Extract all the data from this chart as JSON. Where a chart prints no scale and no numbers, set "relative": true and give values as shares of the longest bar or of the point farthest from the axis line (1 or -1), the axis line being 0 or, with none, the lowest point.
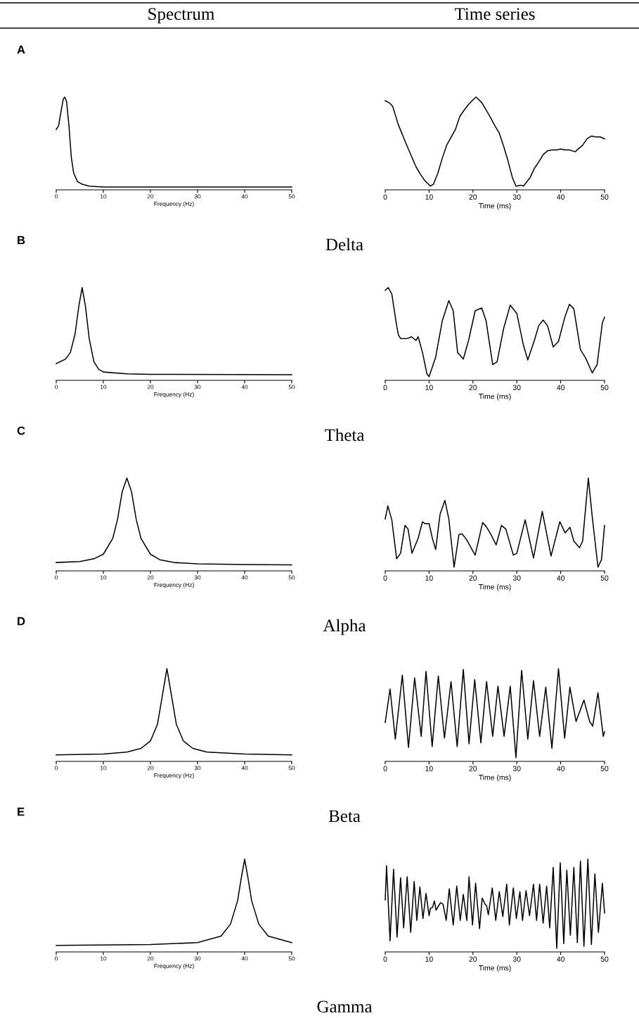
{
  "chart_data": [
    {
      "type": "line",
      "title": "Spectrum",
      "annotations": [
        "A"
      ],
      "xlabel": "Frequency (Hz)",
      "xlim": [
        0,
        50
      ],
      "xticks": [
        0,
        10,
        20,
        30,
        40,
        50
      ],
      "relative": true,
      "x": [
        0,
        0.5,
        1,
        1.5,
        1.8,
        2.2,
        2.7,
        3.2,
        3.7,
        4.5,
        5.5,
        7,
        10,
        50
      ],
      "series": [
        {
          "color": "#000000",
          "values": [
            0.65,
            0.69,
            0.84,
            0.98,
            1,
            0.95,
            0.69,
            0.35,
            0.18,
            0.09,
            0.06,
            0.04,
            0.03,
            0.03
          ]
        }
      ]
    },
    {
      "type": "line",
      "title": "Time series",
      "annotations": [
        "Delta"
      ],
      "xlabel": "Time (ms)",
      "xlim": [
        0,
        50
      ],
      "xticks": [
        0,
        10,
        20,
        30,
        40,
        50
      ],
      "relative": true,
      "x": [
        0,
        1,
        1.7,
        3,
        5,
        7,
        8,
        9,
        10.3,
        11,
        12,
        13,
        14,
        16,
        17,
        18,
        19,
        20,
        20.7,
        22,
        23,
        24,
        25,
        26,
        27,
        28,
        29,
        29.8,
        31,
        31.5,
        33,
        34,
        35,
        36,
        37,
        38,
        39,
        40,
        41,
        42,
        43.3,
        44,
        45,
        46,
        47,
        48,
        49,
        50
      ],
      "series": [
        {
          "color": "#000000",
          "values": [
            0.96,
            0.935,
            0.9,
            0.7,
            0.47,
            0.25,
            0.17,
            0.1,
            0.04,
            0.06,
            0.18,
            0.34,
            0.48,
            0.65,
            0.79,
            0.86,
            0.92,
            0.97,
            1,
            0.94,
            0.86,
            0.78,
            0.69,
            0.61,
            0.47,
            0.31,
            0.13,
            0.04,
            0.05,
            0.04,
            0.13,
            0.23,
            0.3,
            0.38,
            0.42,
            0.43,
            0.43,
            0.44,
            0.43,
            0.43,
            0.41,
            0.44,
            0.48,
            0.55,
            0.58,
            0.57,
            0.57,
            0.55
          ]
        }
      ]
    },
    {
      "type": "line",
      "annotations": [
        "B"
      ],
      "xlabel": "Frequency (Hz)",
      "xlim": [
        0,
        50
      ],
      "xticks": [
        0,
        10,
        20,
        30,
        40,
        50
      ],
      "relative": true,
      "x": [
        0,
        2,
        3,
        4,
        4.8,
        5.5,
        6.2,
        7,
        8,
        9,
        10,
        15,
        20,
        50
      ],
      "series": [
        {
          "color": "#000000",
          "values": [
            0.18,
            0.23,
            0.3,
            0.5,
            0.8,
            1,
            0.8,
            0.45,
            0.2,
            0.12,
            0.09,
            0.07,
            0.065,
            0.06
          ]
        }
      ]
    },
    {
      "type": "line",
      "annotations": [
        "Theta"
      ],
      "xlabel": "Time (ms)",
      "xlim": [
        0,
        50
      ],
      "xticks": [
        0,
        10,
        20,
        30,
        40,
        50
      ],
      "relative": true,
      "x": [
        0,
        0.7,
        1.5,
        2.5,
        3,
        3.5,
        5,
        6,
        7,
        7.5,
        8.5,
        9.5,
        10,
        11.5,
        13,
        14.5,
        15.5,
        16.5,
        17.8,
        19,
        20.5,
        22,
        23,
        24.5,
        25.5,
        27,
        28.5,
        30,
        31.5,
        32.5,
        34,
        35,
        36,
        37,
        38.3,
        39.5,
        41,
        42,
        43,
        44.5,
        45.7,
        47.2,
        48.3,
        49.5,
        50
      ],
      "series": [
        {
          "color": "#000000",
          "values": [
            0.97,
            1,
            0.93,
            0.62,
            0.49,
            0.45,
            0.45,
            0.47,
            0.43,
            0.47,
            0.3,
            0.07,
            0.04,
            0.25,
            0.64,
            0.86,
            0.75,
            0.3,
            0.23,
            0.43,
            0.75,
            0.78,
            0.64,
            0.17,
            0.2,
            0.56,
            0.81,
            0.72,
            0.38,
            0.22,
            0.43,
            0.59,
            0.65,
            0.59,
            0.36,
            0.42,
            0.69,
            0.82,
            0.77,
            0.33,
            0.24,
            0.08,
            0.17,
            0.62,
            0.68
          ]
        }
      ]
    },
    {
      "type": "line",
      "annotations": [
        "C"
      ],
      "xlabel": "Frequency (Hz)",
      "xlim": [
        0,
        50
      ],
      "xticks": [
        0,
        10,
        20,
        30,
        40,
        50
      ],
      "relative": true,
      "x": [
        0,
        5,
        8,
        10,
        12,
        13,
        14,
        15,
        16,
        17,
        18,
        20,
        22,
        25,
        30,
        40,
        50
      ],
      "series": [
        {
          "color": "#000000",
          "values": [
            0.09,
            0.1,
            0.13,
            0.18,
            0.35,
            0.55,
            0.85,
            1,
            0.85,
            0.55,
            0.35,
            0.18,
            0.12,
            0.09,
            0.075,
            0.068,
            0.064
          ]
        }
      ]
    },
    {
      "type": "line",
      "annotations": [
        "Alpha"
      ],
      "xlabel": "Time (ms)",
      "xlim": [
        0,
        50
      ],
      "xticks": [
        0,
        10,
        20,
        30,
        40,
        50
      ],
      "relative": true,
      "x": [
        0,
        0.6,
        1.5,
        2.6,
        3.5,
        4.5,
        5.2,
        6.1,
        7.5,
        8.5,
        9,
        10,
        10.8,
        11.5,
        12.5,
        13.6,
        14.5,
        15.7,
        16.8,
        17.5,
        18.5,
        20.5,
        22.2,
        23,
        24,
        25.3,
        26.5,
        27.5,
        29.2,
        30,
        31.9,
        33.8,
        35.8,
        37.8,
        39.8,
        41,
        42.1,
        43,
        44.3,
        45,
        46.3,
        47.2,
        48.5,
        49.3,
        50
      ],
      "series": [
        {
          "color": "#000000",
          "values": [
            0.56,
            0.7,
            0.55,
            0.13,
            0.19,
            0.49,
            0.45,
            0.19,
            0.35,
            0.53,
            0.51,
            0.51,
            0.34,
            0.23,
            0.61,
            0.76,
            0.56,
            0.04,
            0.39,
            0.4,
            0.34,
            0.17,
            0.52,
            0.48,
            0.4,
            0.28,
            0.49,
            0.45,
            0.17,
            0.19,
            0.55,
            0.14,
            0.64,
            0.16,
            0.53,
            0.41,
            0.47,
            0.32,
            0.25,
            0.32,
            1,
            0.58,
            0.04,
            0.12,
            0.49
          ]
        }
      ]
    },
    {
      "type": "line",
      "annotations": [
        "D"
      ],
      "xlabel": "Frequency (Hz)",
      "xlim": [
        0,
        50
      ],
      "xticks": [
        0,
        10,
        20,
        30,
        40,
        50
      ],
      "relative": true,
      "x": [
        0,
        10,
        15,
        18,
        20,
        21.5,
        22.5,
        23.5,
        24.5,
        25.5,
        27,
        29,
        32,
        40,
        50
      ],
      "series": [
        {
          "color": "#000000",
          "values": [
            0.07,
            0.08,
            0.1,
            0.14,
            0.22,
            0.4,
            0.7,
            1,
            0.7,
            0.4,
            0.22,
            0.14,
            0.1,
            0.08,
            0.07
          ]
        }
      ]
    },
    {
      "type": "line",
      "annotations": [
        "Beta"
      ],
      "xlabel": "Time (ms)",
      "xlim": [
        0,
        50
      ],
      "xticks": [
        0,
        10,
        20,
        30,
        40,
        50
      ],
      "relative": true,
      "x": [
        0,
        1.1,
        2.3,
        3.9,
        5.3,
        6.7,
        8.2,
        9.3,
        10.7,
        12.1,
        13.5,
        15,
        16.4,
        17.8,
        19.1,
        20.4,
        21.8,
        23.1,
        24.5,
        25.7,
        27.1,
        28.5,
        29.8,
        31.1,
        32.5,
        33.8,
        35.2,
        36.6,
        38,
        39.5,
        40.9,
        42.1,
        43.5,
        45.3,
        46.6,
        47.3,
        48.5,
        49.7,
        50
      ],
      "series": [
        {
          "color": "#000000",
          "values": [
            0.42,
            0.78,
            0.24,
            0.93,
            0.15,
            0.9,
            0.27,
            0.97,
            0.16,
            0.92,
            0.25,
            0.86,
            0.16,
            0.99,
            0.19,
            0.88,
            0.2,
            0.86,
            0.27,
            0.81,
            0.27,
            0.81,
            0.04,
            0.98,
            0.24,
            0.87,
            0.27,
            0.8,
            0.14,
            1,
            0.25,
            0.8,
            0.43,
            0.66,
            0.43,
            0.38,
            0.74,
            0.27,
            0.32
          ]
        }
      ]
    },
    {
      "type": "line",
      "annotations": [
        "E"
      ],
      "xlabel": "Frequency (Hz)",
      "xlim": [
        0,
        50
      ],
      "xticks": [
        0,
        10,
        20,
        30,
        40,
        50
      ],
      "relative": true,
      "x": [
        0,
        20,
        30,
        35,
        37,
        38.5,
        39.3,
        40,
        40.7,
        41.5,
        43,
        45,
        50
      ],
      "series": [
        {
          "color": "#000000",
          "values": [
            0.07,
            0.08,
            0.1,
            0.17,
            0.3,
            0.55,
            0.8,
            1,
            0.8,
            0.55,
            0.3,
            0.17,
            0.1
          ]
        }
      ]
    },
    {
      "type": "line",
      "annotations": [
        "Gamma"
      ],
      "xlabel": "Time (ms)",
      "xlim": [
        0,
        50
      ],
      "xticks": [
        0,
        10,
        20,
        30,
        40,
        50
      ],
      "relative": true,
      "x": [
        0,
        0.3,
        1.1,
        1.9,
        2.7,
        3.5,
        4.2,
        5.0,
        5.8,
        6.6,
        7.2,
        7.9,
        8.6,
        9.3,
        10.0,
        10.3,
        10.8,
        11.2,
        11.6,
        12.2,
        12.6,
        13.0,
        13.2,
        13.9,
        14.6,
        15.5,
        16.3,
        17.1,
        17.8,
        18.6,
        19.1,
        19.9,
        20.6,
        21.5,
        22.1,
        22.8,
        23.1,
        23.5,
        24.4,
        25.2,
        26.0,
        26.8,
        27.7,
        28.3,
        29.2,
        29.9,
        30.7,
        31.3,
        32.1,
        32.9,
        33.8,
        34.5,
        35.2,
        36.0,
        36.8,
        37.5,
        38.3,
        39.1,
        39.9,
        40.7,
        41.4,
        42.2,
        43.0,
        43.8,
        44.5,
        45.3,
        46.2,
        47.0,
        47.8,
        48.6,
        49.5,
        50
      ],
      "series": [
        {
          "color": "#000000",
          "values": [
            0.56,
            0.93,
            0.12,
            0.89,
            0.16,
            0.8,
            0.26,
            0.81,
            0.21,
            0.76,
            0.34,
            0.7,
            0.36,
            0.63,
            0.39,
            0.47,
            0.48,
            0.55,
            0.45,
            0.5,
            0.53,
            0.52,
            0.51,
            0.34,
            0.68,
            0.29,
            0.71,
            0.34,
            0.62,
            0.34,
            0.81,
            0.29,
            0.74,
            0.25,
            0.58,
            0.51,
            0.5,
            0.4,
            0.69,
            0.34,
            0.65,
            0.38,
            0.73,
            0.29,
            0.69,
            0.36,
            0.65,
            0.34,
            0.66,
            0.39,
            0.73,
            0.34,
            0.73,
            0.31,
            0.71,
            0.26,
            0.91,
            0.04,
            0.96,
            0.09,
            0.88,
            0.18,
            0.91,
            0.1,
            0.98,
            0.06,
            1,
            0.08,
            0.84,
            0.21,
            0.74,
            0.42
          ]
        }
      ]
    }
  ]
}
